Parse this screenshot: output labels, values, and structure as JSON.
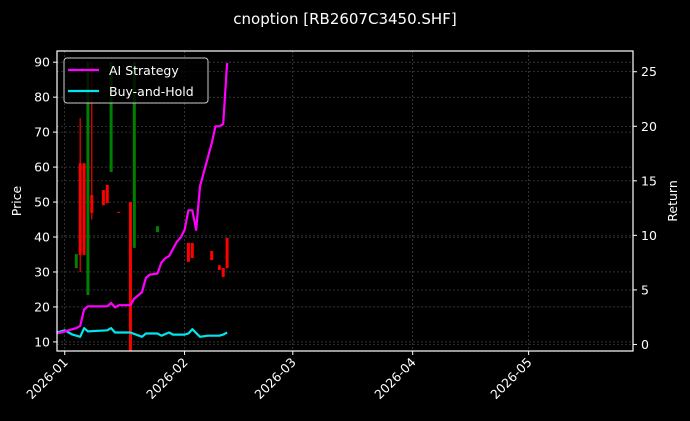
{
  "figure": {
    "title": "cnoption [RB2607C3450.SHF]",
    "background": "#000000"
  },
  "legend": {
    "items": [
      {
        "label": "AI Strategy",
        "color": "#ff00ff"
      },
      {
        "label": "Buy-and-Hold",
        "color": "#00e5ee"
      }
    ]
  },
  "chart_data": {
    "type": "line",
    "title": "cnoption [RB2607C3450.SHF]",
    "xlabel": "",
    "ylabel": "Price",
    "ylabel_right": "Return",
    "grid": true,
    "legend_position": "upper left",
    "x_ticks": [
      "2026-01",
      "2026-02",
      "2026-03",
      "2026-04",
      "2026-05"
    ],
    "x_range": [
      "2025-12-30",
      "2026-05-28"
    ],
    "y_left_ticks": [
      10,
      20,
      30,
      40,
      50,
      60,
      70,
      80,
      90
    ],
    "y_left_range": [
      7.4,
      93.2
    ],
    "y_right_ticks": [
      0,
      5,
      10,
      15,
      20,
      25
    ],
    "y_right_range": [
      -0.6,
      26.9
    ],
    "candlesticks": {
      "axis": "left",
      "up_color": "#008000",
      "down_color": "#ff0000",
      "bars": [
        {
          "date": "2026-01-04",
          "open": 31.1,
          "close": 35.1,
          "high": 35.1,
          "low": 31.1
        },
        {
          "date": "2026-01-05",
          "open": 61.1,
          "close": 34.9,
          "high": 74.0,
          "low": 30.0
        },
        {
          "date": "2026-01-06",
          "open": 61.1,
          "close": 34.9,
          "high": 61.1,
          "low": 34.9
        },
        {
          "date": "2026-01-07",
          "open": 23.4,
          "close": 90.0,
          "high": 90.0,
          "low": 23.4
        },
        {
          "date": "2026-01-08",
          "open": 52.0,
          "close": 46.9,
          "high": 90.0,
          "low": 45.0
        },
        {
          "date": "2026-01-11",
          "open": 53.4,
          "close": 49.1,
          "high": 53.4,
          "low": 49.1
        },
        {
          "date": "2026-01-12",
          "open": 54.9,
          "close": 49.7,
          "high": 54.9,
          "low": 49.7
        },
        {
          "date": "2026-01-13",
          "open": 58.6,
          "close": 90.0,
          "high": 90.0,
          "low": 58.6
        },
        {
          "date": "2026-01-15",
          "open": 47.2,
          "close": 46.9,
          "high": 47.2,
          "low": 46.9
        },
        {
          "date": "2026-01-18",
          "open": 50.0,
          "close": 7.0,
          "high": 50.0,
          "low": 7.0
        },
        {
          "date": "2026-01-19",
          "open": 36.9,
          "close": 90.0,
          "high": 90.0,
          "low": 36.9
        },
        {
          "date": "2026-01-25",
          "open": 41.4,
          "close": 43.1,
          "high": 43.1,
          "low": 41.4
        },
        {
          "date": "2026-02-02",
          "open": 38.3,
          "close": 32.9,
          "high": 38.3,
          "low": 32.9
        },
        {
          "date": "2026-02-03",
          "open": 38.3,
          "close": 34.0,
          "high": 38.3,
          "low": 34.0
        },
        {
          "date": "2026-02-08",
          "open": 36.0,
          "close": 33.4,
          "high": 36.0,
          "low": 33.4
        },
        {
          "date": "2026-02-10",
          "open": 31.9,
          "close": 30.6,
          "high": 31.9,
          "low": 30.6
        },
        {
          "date": "2026-02-11",
          "open": 31.1,
          "close": 28.6,
          "high": 31.1,
          "low": 28.6
        },
        {
          "date": "2026-02-12",
          "open": 39.7,
          "close": 31.1,
          "high": 39.7,
          "low": 31.1
        }
      ]
    },
    "series": [
      {
        "name": "AI Strategy",
        "axis": "right",
        "color": "#ff00ff",
        "x": [
          "2025-12-30",
          "2026-01-01",
          "2026-01-04",
          "2026-01-05",
          "2026-01-06",
          "2026-01-07",
          "2026-01-10",
          "2026-01-12",
          "2026-01-13",
          "2026-01-14",
          "2026-01-15",
          "2026-01-18",
          "2026-01-19",
          "2026-01-21",
          "2026-01-22",
          "2026-01-23",
          "2026-01-25",
          "2026-01-26",
          "2026-01-27",
          "2026-01-28",
          "2026-01-30",
          "2026-01-31",
          "2026-02-01",
          "2026-02-02",
          "2026-02-03",
          "2026-02-04",
          "2026-02-05",
          "2026-02-08",
          "2026-02-09",
          "2026-02-10",
          "2026-02-11",
          "2026-02-12"
        ],
        "values": [
          1.0,
          1.2,
          1.5,
          1.7,
          3.2,
          3.5,
          3.5,
          3.5,
          3.8,
          3.4,
          3.6,
          3.6,
          4.2,
          4.8,
          6.1,
          6.4,
          6.5,
          7.5,
          7.9,
          8.1,
          9.4,
          9.8,
          10.5,
          12.3,
          12.3,
          10.5,
          14.5,
          18.4,
          20.0,
          20.0,
          20.2,
          25.8
        ]
      },
      {
        "name": "Buy-and-Hold",
        "axis": "right",
        "color": "#00e5ee",
        "x": [
          "2025-12-30",
          "2026-01-01",
          "2026-01-03",
          "2026-01-05",
          "2026-01-06",
          "2026-01-07",
          "2026-01-12",
          "2026-01-13",
          "2026-01-14",
          "2026-01-18",
          "2026-01-21",
          "2026-01-22",
          "2026-01-25",
          "2026-01-26",
          "2026-01-28",
          "2026-01-29",
          "2026-02-01",
          "2026-02-02",
          "2026-02-03",
          "2026-02-05",
          "2026-02-07",
          "2026-02-10",
          "2026-02-11",
          "2026-02-12"
        ],
        "values": [
          1.1,
          1.3,
          0.9,
          0.7,
          1.5,
          1.2,
          1.3,
          1.5,
          1.1,
          1.1,
          0.7,
          1.0,
          1.0,
          0.8,
          1.1,
          0.9,
          0.9,
          1.0,
          1.4,
          0.7,
          0.8,
          0.8,
          0.9,
          1.1
        ]
      }
    ]
  }
}
